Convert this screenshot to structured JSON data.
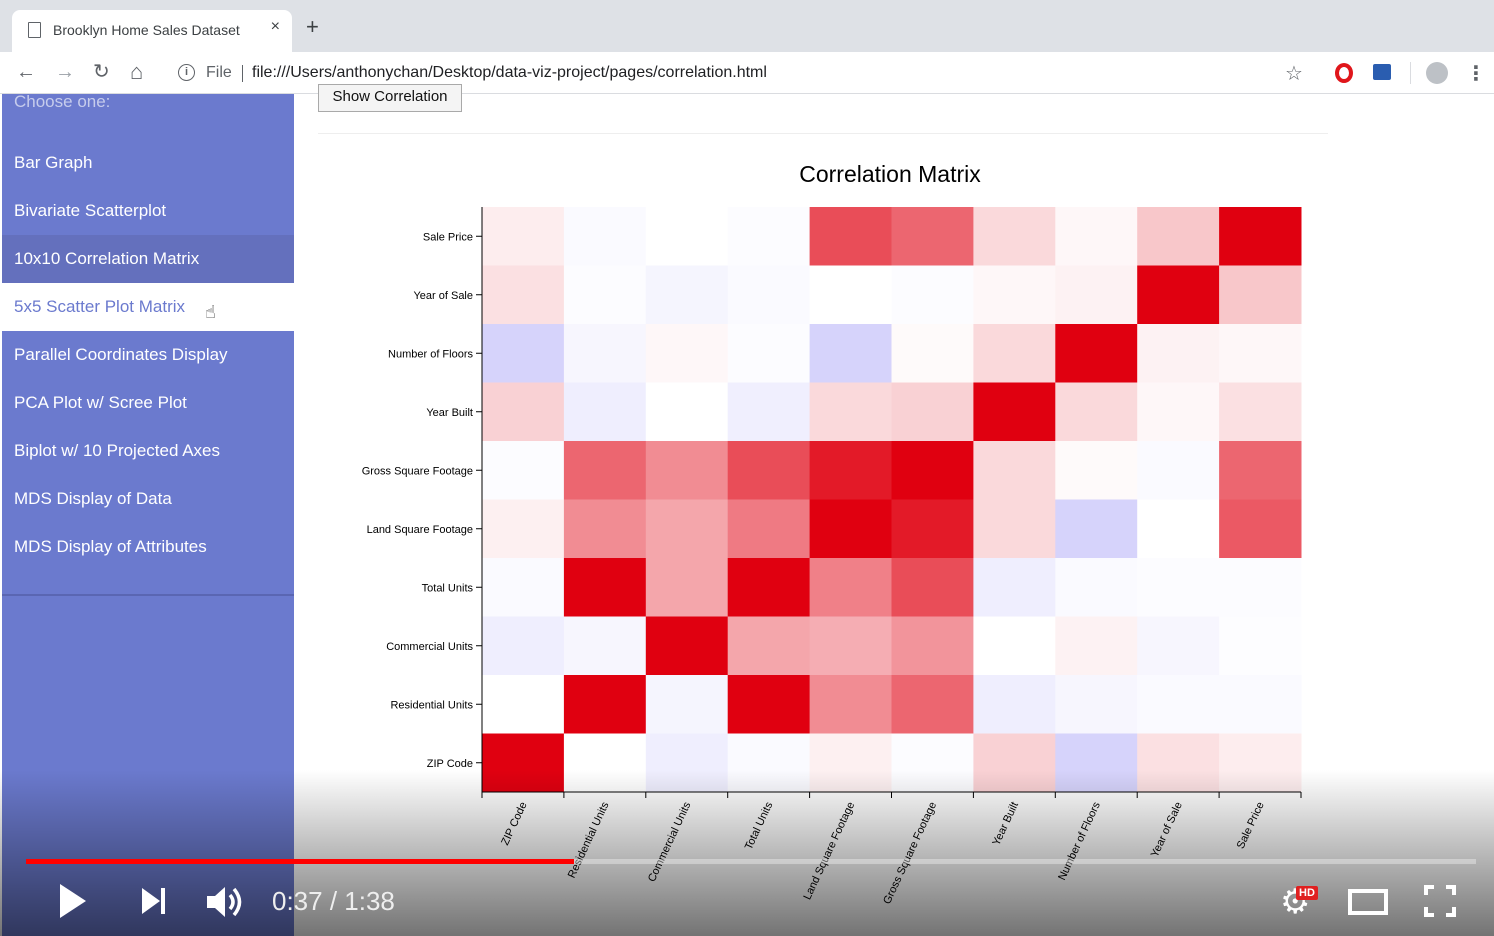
{
  "browser": {
    "tab_title": "Brooklyn Home Sales Dataset",
    "close_glyph": "×",
    "new_tab_glyph": "+",
    "back_glyph": "←",
    "forward_glyph": "→",
    "reload_glyph": "↻",
    "home_glyph": "⌂",
    "info_glyph": "i",
    "url_scheme_label": "File",
    "url": "file:///Users/anthonychan/Desktop/data-viz-project/pages/correlation.html",
    "star_glyph": "☆",
    "menu_glyph": "⋮"
  },
  "sidebar": {
    "prompt": "Choose one:",
    "items": [
      {
        "label": "Bar Graph"
      },
      {
        "label": "Bivariate Scatterplot"
      },
      {
        "label": "10x10 Correlation Matrix",
        "state": "active"
      },
      {
        "label": "5x5 Scatter Plot Matrix",
        "state": "hover"
      },
      {
        "label": "Parallel Coordinates Display"
      },
      {
        "label": "PCA Plot w/ Scree Plot"
      },
      {
        "label": "Biplot w/ 10 Projected Axes"
      },
      {
        "label": "MDS Display of Data"
      },
      {
        "label": "MDS Display of Attributes"
      }
    ],
    "cursor_glyph": "☝"
  },
  "main": {
    "show_button_label": "Show Correlation"
  },
  "chart_data": {
    "type": "heatmap",
    "title": "Correlation Matrix",
    "x_labels": [
      "ZIP Code",
      "Residential Units",
      "Commercial Units",
      "Total Units",
      "Land Square Footage",
      "Gross Square Footage",
      "Year Built",
      "Number of Floors",
      "Year of Sale",
      "Sale Price"
    ],
    "y_labels_top_to_bottom": [
      "Sale Price",
      "Year of Sale",
      "Number of Floors",
      "Year Built",
      "Gross Square Footage",
      "Land Square Footage",
      "Total Units",
      "Commercial Units",
      "Residential Units",
      "ZIP Code"
    ],
    "color_scale": {
      "negative": "#5a50f0",
      "zero": "#ffffff",
      "positive": "#e00010",
      "domain": [
        -1,
        1
      ]
    },
    "values_top_to_bottom": [
      [
        0.07,
        -0.03,
        0.0,
        -0.02,
        0.7,
        0.6,
        0.15,
        0.03,
        0.22,
        1.0
      ],
      [
        0.12,
        -0.02,
        -0.06,
        -0.03,
        0.0,
        -0.02,
        0.03,
        0.05,
        1.0,
        0.22
      ],
      [
        -0.25,
        -0.05,
        0.03,
        -0.02,
        -0.25,
        0.02,
        0.15,
        1.0,
        0.05,
        0.03
      ],
      [
        0.18,
        -0.1,
        0.0,
        -0.09,
        0.15,
        0.18,
        1.0,
        0.15,
        0.03,
        0.12
      ],
      [
        -0.02,
        0.6,
        0.45,
        0.7,
        0.9,
        1.0,
        0.15,
        0.02,
        -0.03,
        0.6
      ],
      [
        0.06,
        0.45,
        0.35,
        0.52,
        1.0,
        0.9,
        0.15,
        -0.25,
        0.0,
        0.65
      ],
      [
        -0.03,
        1.0,
        0.35,
        1.0,
        0.5,
        0.7,
        -0.1,
        -0.03,
        -0.02,
        -0.02
      ],
      [
        -0.1,
        -0.05,
        1.0,
        0.35,
        0.32,
        0.42,
        0.0,
        0.05,
        -0.05,
        -0.01
      ],
      [
        0.0,
        1.0,
        -0.06,
        1.0,
        0.45,
        0.6,
        -0.1,
        -0.05,
        -0.03,
        -0.03
      ],
      [
        1.0,
        0.0,
        -0.1,
        -0.03,
        0.06,
        -0.02,
        0.18,
        -0.25,
        0.12,
        0.07
      ]
    ]
  },
  "player": {
    "progress_fraction": 0.378,
    "current_time": "0:37",
    "separator": " / ",
    "duration": "1:38",
    "hd_badge": "HD",
    "settings_glyph": "⚙"
  }
}
